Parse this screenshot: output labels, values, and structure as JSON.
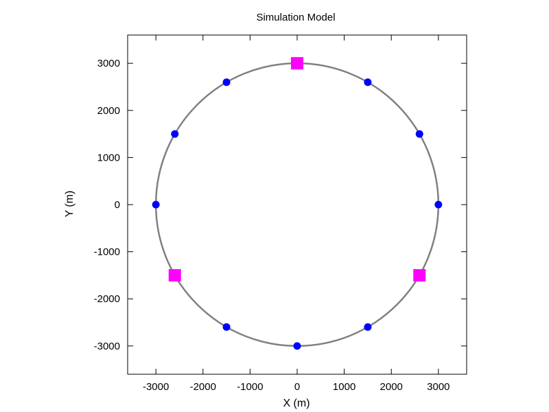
{
  "chart_data": {
    "type": "scatter",
    "title": "Simulation Model",
    "xlabel": "X (m)",
    "ylabel": "Y (m)",
    "xlim": [
      -3600,
      3600
    ],
    "ylim": [
      -3600,
      3600
    ],
    "xticks": [
      -3000,
      -2000,
      -1000,
      0,
      1000,
      2000,
      3000
    ],
    "yticks": [
      -3000,
      -2000,
      -1000,
      0,
      1000,
      2000,
      3000
    ],
    "grid": false,
    "legend": "none",
    "circle": {
      "center": [
        0,
        0
      ],
      "radius": 3000,
      "color": "#808080"
    },
    "series": [
      {
        "marker": "circle",
        "color": "#0000ff",
        "points": [
          [
            3000,
            0
          ],
          [
            2598,
            1500
          ],
          [
            1500,
            2598
          ],
          [
            -1500,
            2598
          ],
          [
            -2598,
            1500
          ],
          [
            -3000,
            0
          ],
          [
            -1500,
            -2598
          ],
          [
            0,
            -3000
          ],
          [
            1500,
            -2598
          ]
        ]
      },
      {
        "marker": "square",
        "color": "#ff00ff",
        "points": [
          [
            0,
            3000
          ],
          [
            -2598,
            -1500
          ],
          [
            2598,
            -1500
          ]
        ]
      }
    ]
  }
}
